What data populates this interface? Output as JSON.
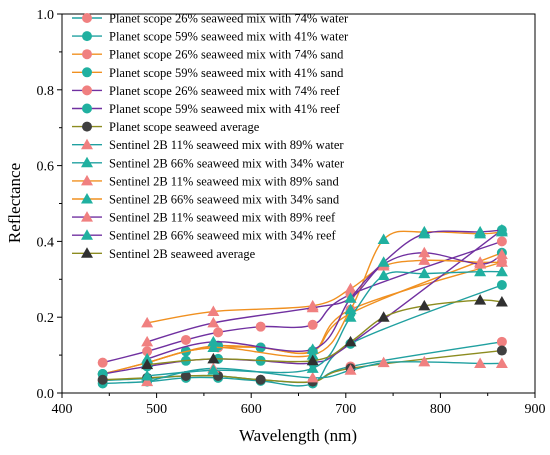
{
  "chart_data": {
    "type": "line",
    "title": "",
    "xlabel": "Wavelength (nm)",
    "ylabel": "Reflectance",
    "xlim": [
      400,
      900
    ],
    "ylim": [
      0,
      1.0
    ],
    "x_ticks": [
      "400",
      "500",
      "600",
      "700",
      "800",
      "900"
    ],
    "y_ticks": [
      "0.0",
      "0.2",
      "0.4",
      "0.6",
      "0.8",
      "1.0"
    ],
    "grid": false,
    "legend_position": "top-left",
    "series": [
      {
        "name": "Planet scope 26% seaweed mix with 74% water",
        "color": "#F08080",
        "line_color": "#20A0A0",
        "marker": "circle",
        "x": [
          443,
          490,
          531,
          565,
          610,
          665,
          705,
          865
        ],
        "y": [
          0.033,
          0.038,
          0.045,
          0.045,
          0.035,
          0.03,
          0.07,
          0.135
        ]
      },
      {
        "name": "Planet scope 59% seaweed mix with 41% water",
        "color": "#20B0A0",
        "line_color": "#20A0A0",
        "marker": "circle",
        "x": [
          443,
          490,
          531,
          565,
          610,
          665,
          705,
          865
        ],
        "y": [
          0.025,
          0.03,
          0.04,
          0.04,
          0.032,
          0.025,
          0.13,
          0.285
        ]
      },
      {
        "name": "Planet scope 26% seaweed mix with 74% sand",
        "color": "#F08080",
        "line_color": "#F09020",
        "marker": "circle",
        "x": [
          443,
          490,
          531,
          565,
          610,
          665,
          705,
          865
        ],
        "y": [
          0.05,
          0.08,
          0.11,
          0.12,
          0.12,
          0.11,
          0.22,
          0.345
        ]
      },
      {
        "name": "Planet scope 59% seaweed mix with 41% sand",
        "color": "#20B0A0",
        "line_color": "#F09020",
        "marker": "circle",
        "x": [
          443,
          490,
          531,
          565,
          610,
          665,
          705,
          865
        ],
        "y": [
          0.05,
          0.08,
          0.11,
          0.125,
          0.12,
          0.11,
          0.21,
          0.37
        ]
      },
      {
        "name": "Planet scope 26% seaweed mix with 74% reef",
        "color": "#F08080",
        "line_color": "#7030A0",
        "marker": "circle",
        "x": [
          443,
          490,
          531,
          565,
          610,
          665,
          705,
          865
        ],
        "y": [
          0.08,
          0.11,
          0.14,
          0.16,
          0.175,
          0.18,
          0.26,
          0.4
        ]
      },
      {
        "name": "Planet scope 59% seaweed mix with 41% reef",
        "color": "#20B0A0",
        "line_color": "#7030A0",
        "marker": "circle",
        "x": [
          443,
          490,
          531,
          565,
          610,
          665,
          705,
          865
        ],
        "y": [
          0.05,
          0.07,
          0.085,
          0.09,
          0.085,
          0.08,
          0.13,
          0.43
        ]
      },
      {
        "name": "Planet scope seaweed average",
        "color": "#404040",
        "line_color": "#8C8C20",
        "marker": "circle",
        "x": [
          443,
          490,
          531,
          565,
          610,
          665,
          705,
          865
        ],
        "y": [
          0.035,
          0.04,
          0.045,
          0.045,
          0.035,
          0.03,
          0.065,
          0.112
        ]
      },
      {
        "name": "Sentinel 2B 11% seaweed mix with 89% water",
        "color": "#F08080",
        "line_color": "#20A0A0",
        "marker": "triangle",
        "x": [
          490,
          560,
          665,
          705,
          740,
          783,
          842,
          865
        ],
        "y": [
          0.03,
          0.065,
          0.04,
          0.06,
          0.08,
          0.082,
          0.078,
          0.078
        ]
      },
      {
        "name": "Sentinel 2B 66% seaweed mix with 34% water",
        "color": "#20B0A0",
        "line_color": "#20A0A0",
        "marker": "triangle",
        "x": [
          490,
          560,
          665,
          705,
          740,
          783,
          842,
          865
        ],
        "y": [
          0.045,
          0.06,
          0.065,
          0.2,
          0.31,
          0.315,
          0.32,
          0.32
        ]
      },
      {
        "name": "Sentinel 2B 11% seaweed mix with 89% sand",
        "color": "#F08080",
        "line_color": "#F09020",
        "marker": "triangle",
        "x": [
          490,
          560,
          665,
          705,
          740,
          783,
          842,
          865
        ],
        "y": [
          0.185,
          0.215,
          0.23,
          0.275,
          0.335,
          0.35,
          0.345,
          0.345
        ]
      },
      {
        "name": "Sentinel 2B 66% seaweed mix with 34% sand",
        "color": "#20B0A0",
        "line_color": "#F09020",
        "marker": "triangle",
        "x": [
          490,
          560,
          665,
          705,
          740,
          783,
          842,
          865
        ],
        "y": [
          0.08,
          0.12,
          0.1,
          0.22,
          0.405,
          0.425,
          0.42,
          0.425
        ]
      },
      {
        "name": "Sentinel 2B 11% seaweed mix with 89% reef",
        "color": "#F08080",
        "line_color": "#7030A0",
        "marker": "triangle",
        "x": [
          490,
          560,
          665,
          705,
          740,
          783,
          842,
          865
        ],
        "y": [
          0.135,
          0.185,
          0.225,
          0.25,
          0.34,
          0.37,
          0.34,
          0.365
        ]
      },
      {
        "name": "Sentinel 2B 66% seaweed mix with 34% reef",
        "color": "#20B0A0",
        "line_color": "#7030A0",
        "marker": "triangle",
        "x": [
          490,
          560,
          665,
          705,
          740,
          783,
          842,
          865
        ],
        "y": [
          0.09,
          0.135,
          0.115,
          0.25,
          0.345,
          0.42,
          0.425,
          0.43
        ]
      },
      {
        "name": "Sentinel 2B seaweed average",
        "color": "#303030",
        "line_color": "#8C8C20",
        "marker": "triangle",
        "x": [
          490,
          560,
          665,
          705,
          740,
          783,
          842,
          865
        ],
        "y": [
          0.075,
          0.09,
          0.085,
          0.135,
          0.2,
          0.23,
          0.245,
          0.24
        ]
      }
    ]
  }
}
